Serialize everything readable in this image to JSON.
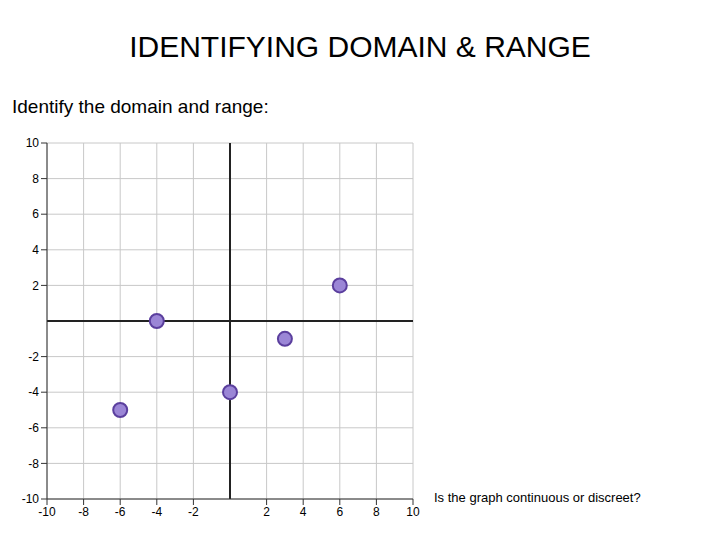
{
  "chart_data": {
    "type": "scatter",
    "title": "IDENTIFYING DOMAIN & RANGE",
    "subtitle": "Identify the domain and range:",
    "annotation": "Is the graph continuous or discreet?",
    "x": [
      -6,
      -4,
      0,
      3,
      6
    ],
    "values": [
      -5,
      0,
      -4,
      -1,
      2
    ],
    "xlim": [
      -10,
      10
    ],
    "ylim": [
      -10,
      10
    ],
    "xticks": [
      -10,
      -8,
      -6,
      -4,
      -2,
      2,
      4,
      6,
      8,
      10
    ],
    "yticks": [
      -10,
      -8,
      -6,
      -4,
      -2,
      2,
      4,
      6,
      8,
      10
    ],
    "grid": true,
    "color": "#9b86d6",
    "marker": "circle"
  }
}
